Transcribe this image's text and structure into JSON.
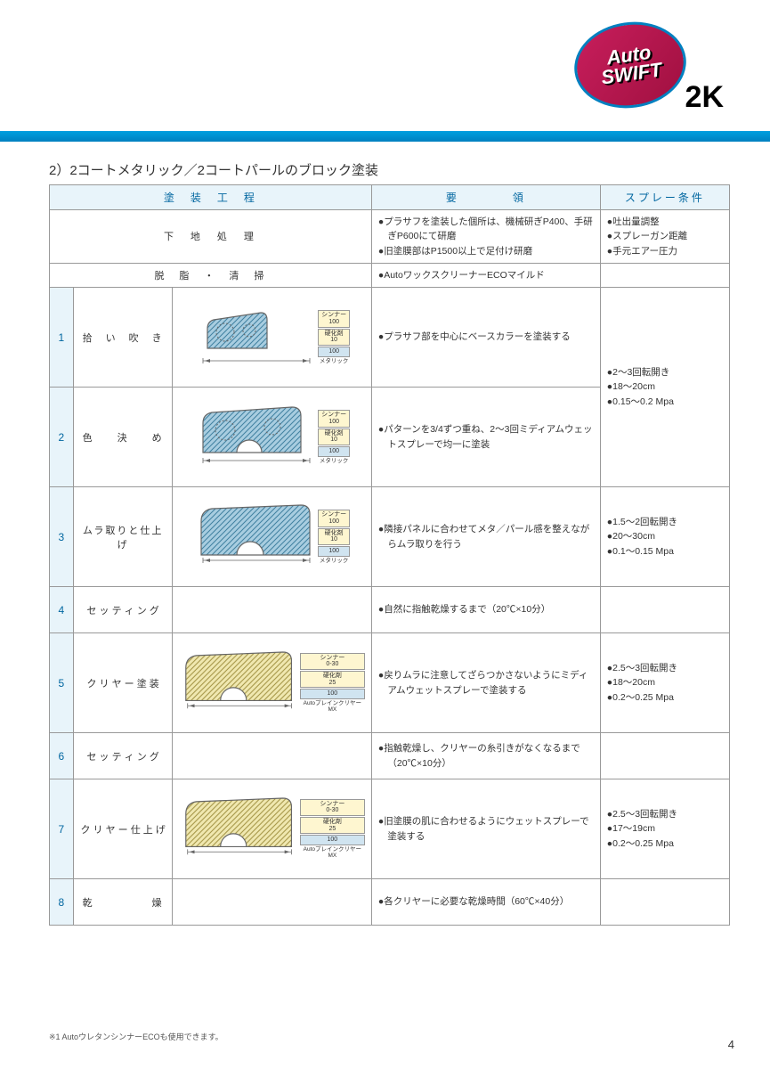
{
  "logo": {
    "line1": "Auto",
    "line2": "SWIFT",
    "suffix": "2K"
  },
  "section_title": "2）2コートメタリック／2コートパールのブロック塗装",
  "headers": {
    "process": "塗　装　工　程",
    "yoryo": "要　　　　領",
    "spray": "スプレー条件"
  },
  "row_pre1": {
    "step": "下　地　処　理",
    "yoryo": [
      "プラサフを塗装した個所は、機械研ぎP400、手研ぎP600にて研磨",
      "旧塗膜部はP1500以上で足付け研磨"
    ],
    "spray": [
      "吐出量調整",
      "スプレーガン距離",
      "手元エアー圧力"
    ]
  },
  "row_pre2": {
    "step": "脱　脂　・　清　掃",
    "yoryo": [
      "AutoワックスクリーナーECOマイルド"
    ]
  },
  "rows": [
    {
      "num": "1",
      "step": "拾　い　吹　き",
      "yoryo": [
        "プラサフ部を中心にベースカラーを塗装する"
      ],
      "ratio": {
        "items": [
          [
            "シンナー",
            "100",
            "rb-yellow"
          ],
          [
            "硬化剤",
            "10",
            "rb-yellow"
          ],
          [
            "",
            "100",
            "rb-blue"
          ]
        ],
        "label": "メタリック"
      },
      "shape": "metallic-small"
    },
    {
      "num": "2",
      "step": "色　　決　　め",
      "yoryo": [
        "パターンを3/4ずつ重ね、2〜3回ミディアムウェットスプレーで均一に塗装"
      ],
      "spray_merge": [
        "2〜3回転開き",
        "18〜20cm",
        "0.15〜0.2 Mpa"
      ],
      "ratio": {
        "items": [
          [
            "シンナー",
            "100",
            "rb-yellow"
          ],
          [
            "硬化剤",
            "10",
            "rb-yellow"
          ],
          [
            "",
            "100",
            "rb-blue"
          ]
        ],
        "label": "メタリック"
      },
      "shape": "metallic-large"
    },
    {
      "num": "3",
      "step": "ムラ取りと仕上げ",
      "yoryo": [
        "隣接パネルに合わせてメタ／パール感を整えながらムラ取りを行う"
      ],
      "spray": [
        "1.5〜2回転開き",
        "20〜30cm",
        "0.1〜0.15 Mpa"
      ],
      "ratio": {
        "items": [
          [
            "シンナー",
            "100",
            "rb-yellow"
          ],
          [
            "硬化剤",
            "10",
            "rb-yellow"
          ],
          [
            "",
            "100",
            "rb-blue"
          ]
        ],
        "label": "メタリック"
      },
      "shape": "metallic-full"
    },
    {
      "num": "4",
      "step": "セ ッ テ ィ ン グ",
      "yoryo": [
        "自然に指触乾燥するまで（20℃×10分）"
      ],
      "shape": "none"
    },
    {
      "num": "5",
      "step": "ク リ ヤ ー 塗 装",
      "yoryo": [
        "戻りムラに注意してざらつかさないようにミディアムウェットスプレーで塗装する"
      ],
      "spray": [
        "2.5〜3回転開き",
        "18〜20cm",
        "0.2〜0.25 Mpa"
      ],
      "ratio": {
        "items": [
          [
            "シンナー",
            "0-30",
            "rb-yellow"
          ],
          [
            "硬化剤",
            "25",
            "rb-yellow"
          ],
          [
            "",
            "100",
            "rb-blue"
          ]
        ],
        "label": "AutoプレインクリヤーMX"
      },
      "shape": "clear-full"
    },
    {
      "num": "6",
      "step": "セ ッ テ ィ ン グ",
      "yoryo": [
        "指触乾燥し、クリヤーの糸引きがなくなるまで（20℃×10分）"
      ],
      "shape": "none"
    },
    {
      "num": "7",
      "step": "ク リ ヤ ー 仕 上 げ",
      "yoryo": [
        "旧塗膜の肌に合わせるようにウェットスプレーで塗装する"
      ],
      "spray": [
        "2.5〜3回転開き",
        "17〜19cm",
        "0.2〜0.25 Mpa"
      ],
      "ratio": {
        "items": [
          [
            "シンナー",
            "0-30",
            "rb-yellow"
          ],
          [
            "硬化剤",
            "25",
            "rb-yellow"
          ],
          [
            "",
            "100",
            "rb-blue"
          ]
        ],
        "label": "AutoプレインクリヤーMX"
      },
      "shape": "clear-full"
    },
    {
      "num": "8",
      "step": "乾　　　　　燥",
      "yoryo": [
        "各クリヤーに必要な乾燥時間（60℃×40分）"
      ],
      "shape": "none"
    }
  ],
  "footnote": "※1 AutoウレタンシンナーECOも使用できます。",
  "page_number": "4",
  "colors": {
    "metallic_fill": "#a8cde0",
    "clear_fill": "#e0d8a0",
    "stroke": "#666666",
    "header_bg": "#e8f4fa",
    "header_text": "#0066a0"
  }
}
